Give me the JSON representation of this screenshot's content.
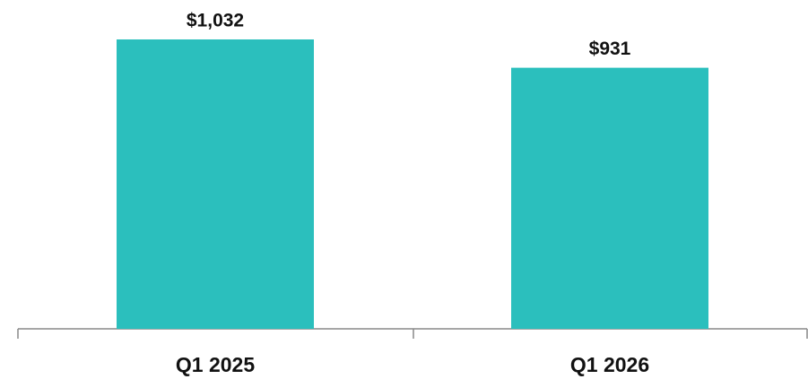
{
  "chart_data": {
    "type": "bar",
    "categories": [
      "Q1 2025",
      "Q1 2026"
    ],
    "values": [
      1032,
      931
    ],
    "value_labels": [
      "$1,032",
      "$931"
    ],
    "color": "#2bbfbd"
  }
}
